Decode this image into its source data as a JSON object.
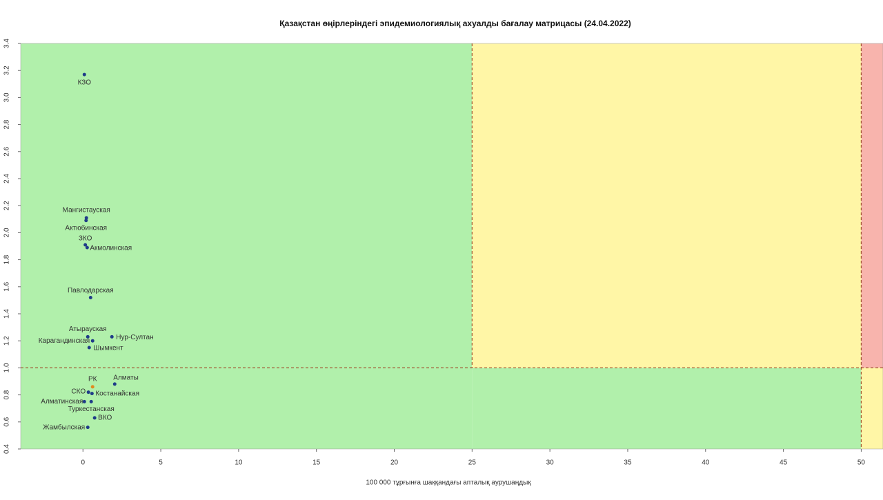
{
  "chart_data": {
    "type": "scatter",
    "title": "Қазақстан өңірлеріндегі эпидемиологиялық ахуалды бағалау матрицасы  (24.04.2022)",
    "x_label": "100 000 тұрғынға шаққандағы апталық аурушаңдық",
    "labels": [
      "КЗО",
      "Мангистауская",
      "Актюбинская",
      "ЗКО",
      "Акмолинская",
      "Павлодарская",
      "Атырауская",
      "Нур-Султан",
      "Карагандинская",
      "Шымкент",
      "Алматы",
      "РК",
      "СКО",
      "Костанайская",
      "Алматинская",
      "Туркестанская",
      "ВКО",
      "Жамбылская"
    ],
    "x": [
      0.09,
      0.22,
      0.2,
      0.15,
      0.27,
      0.49,
      0.31,
      1.86,
      0.62,
      0.4,
      2.04,
      0.62,
      0.35,
      0.58,
      0.09,
      0.53,
      0.75,
      0.31
    ],
    "y": [
      3.17,
      2.11,
      2.09,
      1.91,
      1.89,
      1.52,
      1.23,
      1.23,
      1.2,
      1.15,
      0.88,
      0.86,
      0.82,
      0.81,
      0.75,
      0.75,
      0.63,
      0.56
    ],
    "colors": [
      "#1f3c88",
      "#1f3c88",
      "#1f3c88",
      "#1f3c88",
      "#1f3c88",
      "#1f3c88",
      "#1f3c88",
      "#1f3c88",
      "#1f3c88",
      "#1f3c88",
      "#1f3c88",
      "#e08a1e",
      "#1f3c88",
      "#1f3c88",
      "#1f3c88",
      "#1f3c88",
      "#1f3c88",
      "#1f3c88"
    ],
    "xlim": [
      -4,
      51.4
    ],
    "ylim": [
      0.4,
      3.4
    ],
    "xticks": [
      0,
      5,
      10,
      15,
      20,
      25,
      30,
      35,
      40,
      45,
      50
    ],
    "yticks": [
      0.4,
      0.6,
      0.8,
      {
        "value": 1,
        "label": "1.0"
      },
      1.2,
      1.4,
      1.6,
      1.8,
      {
        "value": 2,
        "label": "2.0"
      },
      2.2,
      2.4,
      2.6,
      2.8,
      {
        "value": 3,
        "label": "3.0"
      },
      3.2,
      3.4
    ],
    "zones": [
      {
        "x": [
          null,
          25
        ],
        "y": [
          null,
          null
        ],
        "color": "#b1f0ab"
      },
      {
        "x": [
          25,
          50
        ],
        "y": [
          1,
          null
        ],
        "color": "#fff6a6"
      },
      {
        "x": [
          25,
          50
        ],
        "y": [
          null,
          1
        ],
        "color": "#b1f0ab"
      },
      {
        "x": [
          50,
          null
        ],
        "y": [
          1,
          null
        ],
        "color": "#f8b4ad"
      },
      {
        "x": [
          50,
          null
        ],
        "y": [
          null,
          1
        ],
        "color": "#fff6a6"
      }
    ],
    "vlines": [
      {
        "x": 25,
        "from_y": 1
      },
      {
        "x": 50,
        "from_y": null
      }
    ],
    "hline": 1,
    "line_color": "#a0522d"
  }
}
